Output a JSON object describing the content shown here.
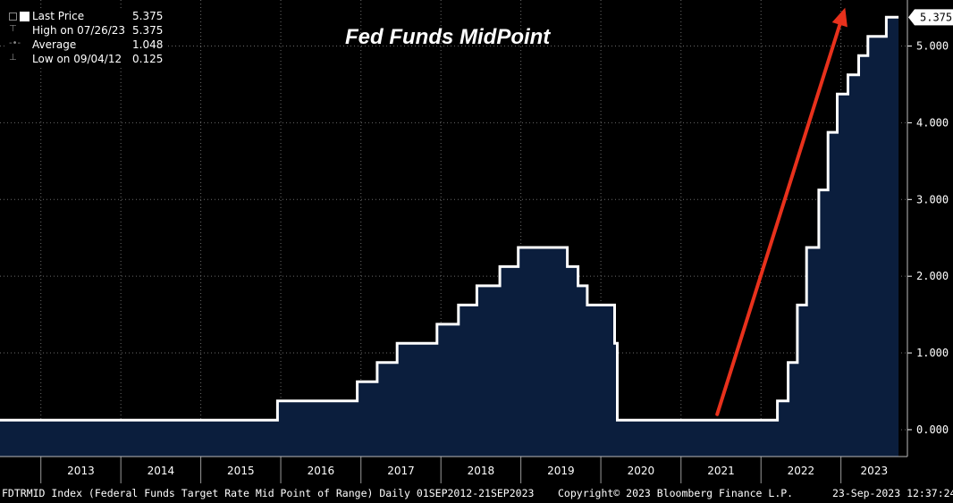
{
  "title": "Fed Funds MidPoint",
  "legend": {
    "rows": [
      {
        "label": "Last Price",
        "value": "5.375"
      },
      {
        "label": "High on 07/26/23",
        "value": "5.375"
      },
      {
        "label": "Average",
        "value": "1.048"
      },
      {
        "label": "Low on 09/04/12",
        "value": "0.125"
      }
    ]
  },
  "last_value_tag": "5.375",
  "footer": {
    "left": "FDTRMID Index (Federal Funds Target Rate Mid Point of Range)  Daily 01SEP2012-21SEP2023",
    "center": "Copyright© 2023 Bloomberg Finance L.P.",
    "right": "23-Sep-2023 12:37:24"
  },
  "colors": {
    "background": "#000000",
    "area_fill": "#0b1e3d",
    "line": "#ffffff",
    "arrow": "#e8311c"
  },
  "chart_data": {
    "type": "area",
    "x_range": [
      "2012-09-01",
      "2023-09-21"
    ],
    "ylim": [
      -0.35,
      5.6
    ],
    "y_ticks": [
      "0.000",
      "1.000",
      "2.000",
      "3.000",
      "4.000",
      "5.000"
    ],
    "x_tick_labels": [
      "2013",
      "2014",
      "2015",
      "2016",
      "2017",
      "2018",
      "2019",
      "2020",
      "2021",
      "2022",
      "2023"
    ],
    "grid": true,
    "series": [
      {
        "x": [
          "2012-09-01",
          "2015-12-17",
          "2016-12-15",
          "2017-03-16",
          "2017-06-15",
          "2017-12-14",
          "2018-03-22",
          "2018-06-14",
          "2018-09-27",
          "2018-12-20",
          "2019-08-01",
          "2019-09-19",
          "2019-10-31",
          "2020-03-04",
          "2020-03-16",
          "2022-03-17",
          "2022-05-05",
          "2022-06-16",
          "2022-07-28",
          "2022-09-22",
          "2022-11-03",
          "2022-12-15",
          "2023-02-02",
          "2023-03-23",
          "2023-05-04",
          "2023-07-27",
          "2023-09-21"
        ],
        "values": [
          0.125,
          0.375,
          0.625,
          0.875,
          1.125,
          1.375,
          1.625,
          1.875,
          2.125,
          2.375,
          2.125,
          1.875,
          1.625,
          1.125,
          0.125,
          0.375,
          0.875,
          1.625,
          2.375,
          3.125,
          3.875,
          4.375,
          4.625,
          4.875,
          5.125,
          5.375,
          5.375
        ]
      }
    ],
    "annotations": [
      {
        "type": "arrow",
        "from": [
          "2021-06-15",
          0.2
        ],
        "to": [
          "2023-01-20",
          5.5
        ]
      }
    ]
  }
}
